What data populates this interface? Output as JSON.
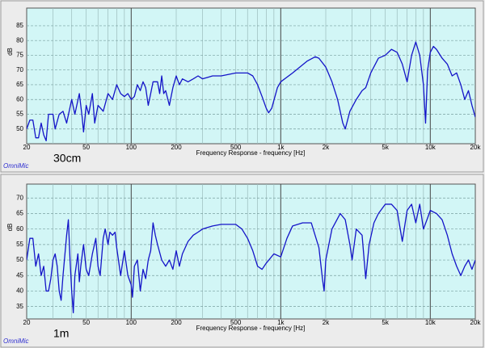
{
  "chart_data": [
    {
      "type": "line",
      "annotation": "30cm",
      "brand": "OmniMic",
      "x_label": "Frequency Response  - frequency [Hz]",
      "y_label": "dB",
      "xscale": "log",
      "xlim": [
        20,
        20000
      ],
      "ylim": [
        45,
        91
      ],
      "grid": true,
      "color": "#1414c8",
      "xticks": [
        20,
        50,
        100,
        200,
        500,
        {
          "value": 1000,
          "label": "1k"
        },
        {
          "value": 2000,
          "label": "2k"
        },
        {
          "value": 5000,
          "label": "5k"
        },
        {
          "value": 10000,
          "label": "10k"
        },
        {
          "value": 20000,
          "label": "20k"
        }
      ],
      "yticks": [
        50,
        55,
        60,
        65,
        70,
        75,
        80,
        85
      ],
      "x": [
        20,
        21,
        22,
        23,
        24,
        25,
        26,
        27,
        28,
        30,
        31,
        33,
        35,
        37,
        40,
        42,
        45,
        47,
        48,
        50,
        52,
        55,
        57,
        60,
        65,
        70,
        75,
        80,
        85,
        90,
        95,
        100,
        105,
        110,
        115,
        120,
        125,
        130,
        135,
        140,
        150,
        155,
        160,
        165,
        170,
        180,
        190,
        200,
        210,
        220,
        240,
        260,
        280,
        300,
        350,
        400,
        500,
        600,
        650,
        700,
        750,
        800,
        830,
        870,
        950,
        1000,
        1200,
        1500,
        1700,
        1800,
        2000,
        2200,
        2400,
        2600,
        2700,
        2900,
        3200,
        3500,
        3700,
        4000,
        4500,
        5000,
        5500,
        6000,
        6500,
        7000,
        7500,
        8000,
        8500,
        9000,
        9300,
        9600,
        10000,
        10500,
        11000,
        12000,
        13000,
        14000,
        15000,
        16000,
        17000,
        18000,
        19000,
        20000
      ],
      "values": [
        50,
        53,
        53,
        47,
        47,
        52,
        48,
        46,
        55,
        55,
        50,
        55,
        56,
        52,
        60,
        55,
        62,
        54,
        49,
        58,
        55,
        62,
        52,
        58,
        56,
        62,
        60,
        65,
        62,
        61,
        62,
        60,
        61,
        65,
        63,
        66,
        64,
        58,
        62,
        66,
        66,
        62,
        68,
        62,
        63,
        58,
        64,
        68,
        65,
        67,
        66,
        67,
        68,
        67,
        68,
        68,
        69,
        69,
        68,
        65,
        61,
        57,
        55.5,
        57,
        64,
        66,
        69,
        73,
        74.5,
        74,
        71,
        66,
        60,
        52,
        50,
        56,
        60,
        63,
        64,
        69,
        74,
        75,
        77,
        76,
        72,
        66,
        75,
        79.5,
        75,
        65,
        52,
        70,
        76,
        78,
        77,
        74,
        72,
        68,
        69,
        65,
        60,
        63,
        58,
        54
      ]
    },
    {
      "type": "line",
      "annotation": "1m",
      "brand": "OmniMic",
      "x_label": "Frequency Response  - frequency [Hz]",
      "y_label": "dB",
      "xscale": "log",
      "xlim": [
        20,
        20000
      ],
      "ylim": [
        31,
        74.5
      ],
      "grid": true,
      "color": "#1414c8",
      "xticks": [
        20,
        50,
        100,
        200,
        500,
        {
          "value": 1000,
          "label": "1k"
        },
        {
          "value": 2000,
          "label": "2k"
        },
        {
          "value": 5000,
          "label": "5k"
        },
        {
          "value": 10000,
          "label": "10k"
        },
        {
          "value": 20000,
          "label": "20k"
        }
      ],
      "yticks": [
        35,
        40,
        45,
        50,
        55,
        60,
        65,
        70
      ],
      "x": [
        20,
        21,
        22,
        23,
        24,
        25,
        26,
        27,
        28,
        29,
        30,
        31,
        32,
        33,
        34,
        35,
        37,
        38,
        39,
        40,
        41,
        42,
        44,
        45,
        46,
        48,
        50,
        52,
        55,
        58,
        60,
        62,
        65,
        67,
        70,
        72,
        75,
        78,
        80,
        85,
        90,
        95,
        100,
        102,
        105,
        110,
        115,
        120,
        125,
        130,
        135,
        140,
        145,
        150,
        160,
        170,
        180,
        190,
        200,
        210,
        220,
        240,
        260,
        280,
        300,
        350,
        400,
        500,
        550,
        600,
        650,
        700,
        750,
        800,
        900,
        1000,
        1100,
        1200,
        1400,
        1600,
        1800,
        1900,
        1950,
        2000,
        2200,
        2500,
        2700,
        2900,
        3000,
        3200,
        3500,
        3700,
        3900,
        4200,
        4500,
        5000,
        5500,
        6000,
        6500,
        7000,
        7500,
        8000,
        8500,
        9000,
        9500,
        10000,
        11000,
        12000,
        13000,
        14000,
        15000,
        16000,
        17000,
        18000,
        19000,
        20000
      ],
      "values": [
        50,
        57,
        57,
        48,
        52,
        45,
        48,
        40,
        40,
        44,
        50,
        52,
        48,
        40,
        37,
        45,
        58,
        63,
        50,
        40,
        33,
        45,
        52,
        43,
        48,
        55,
        47,
        45,
        52,
        57,
        48,
        45,
        57,
        60,
        55,
        59,
        58,
        59,
        54,
        45,
        53,
        45,
        42,
        38,
        48,
        50,
        40,
        47,
        44,
        50,
        53,
        62,
        58,
        55,
        50,
        48,
        50,
        47,
        53,
        48,
        52,
        56,
        58,
        59,
        60,
        61,
        61.5,
        61.5,
        60,
        57,
        53,
        48,
        47,
        49,
        52,
        51,
        57,
        61,
        62,
        62,
        54,
        44,
        40,
        50,
        60,
        65,
        63,
        55,
        50,
        60,
        58,
        44,
        55,
        62,
        65,
        68,
        68,
        66,
        56,
        66,
        68,
        62,
        68,
        60,
        63,
        66,
        65,
        63,
        58,
        52,
        48,
        45,
        48,
        50,
        47,
        50
      ]
    }
  ]
}
